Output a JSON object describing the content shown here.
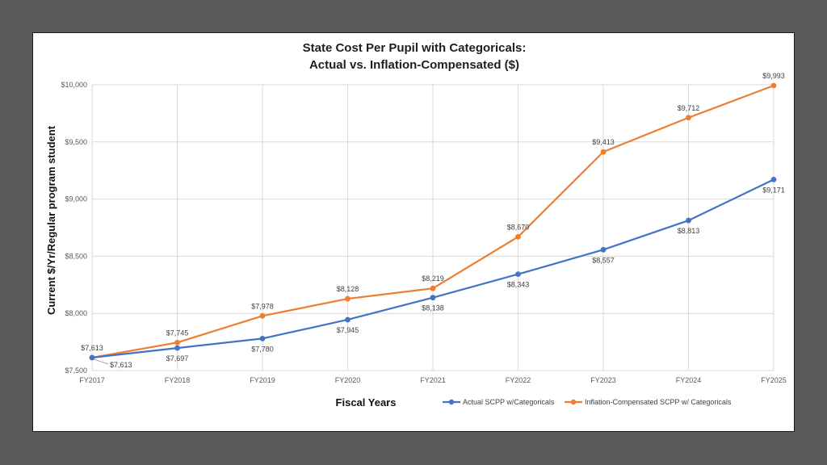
{
  "chart_data": {
    "type": "line",
    "title": [
      "State Cost Per Pupil with Categoricals:",
      "Actual vs. Inflation-Compensated ($)"
    ],
    "xlabel": "Fiscal Years",
    "ylabel": "Current $/Yr/Regular program student",
    "categories": [
      "FY2017",
      "FY2018",
      "FY2019",
      "FY2020",
      "FY2021",
      "FY2022",
      "FY2023",
      "FY2024",
      "FY2025"
    ],
    "ylim": [
      7500,
      10000
    ],
    "yticks": [
      7500,
      8000,
      8500,
      9000,
      9500,
      10000
    ],
    "ytick_labels": [
      "$7,500",
      "$8,000",
      "$8,500",
      "$9,000",
      "$9,500",
      "$10,000"
    ],
    "grid": true,
    "legend_position": "bottom-right",
    "series": [
      {
        "name": "Actual SCPP w/Categoricals",
        "color": "#4472c4",
        "values": [
          7613,
          7697,
          7780,
          7945,
          8138,
          8343,
          8557,
          8813,
          9171
        ],
        "labels": [
          "$7,613",
          "$7,697",
          "$7,780",
          "$7,945",
          "$8,138",
          "$8,343",
          "$8,557",
          "$8,813",
          "$9,171"
        ],
        "label_position": "below"
      },
      {
        "name": "Inflation-Compensated SCPP w/ Categoricals",
        "color": "#ed7d31",
        "values": [
          7613,
          7745,
          7978,
          8128,
          8219,
          8670,
          9413,
          9712,
          9993
        ],
        "labels": [
          "$7,613",
          "$7,745",
          "$7,978",
          "$8,128",
          "$8,219",
          "$8,670",
          "$9,413",
          "$9,712",
          "$9,993"
        ],
        "label_position": "above"
      }
    ]
  }
}
